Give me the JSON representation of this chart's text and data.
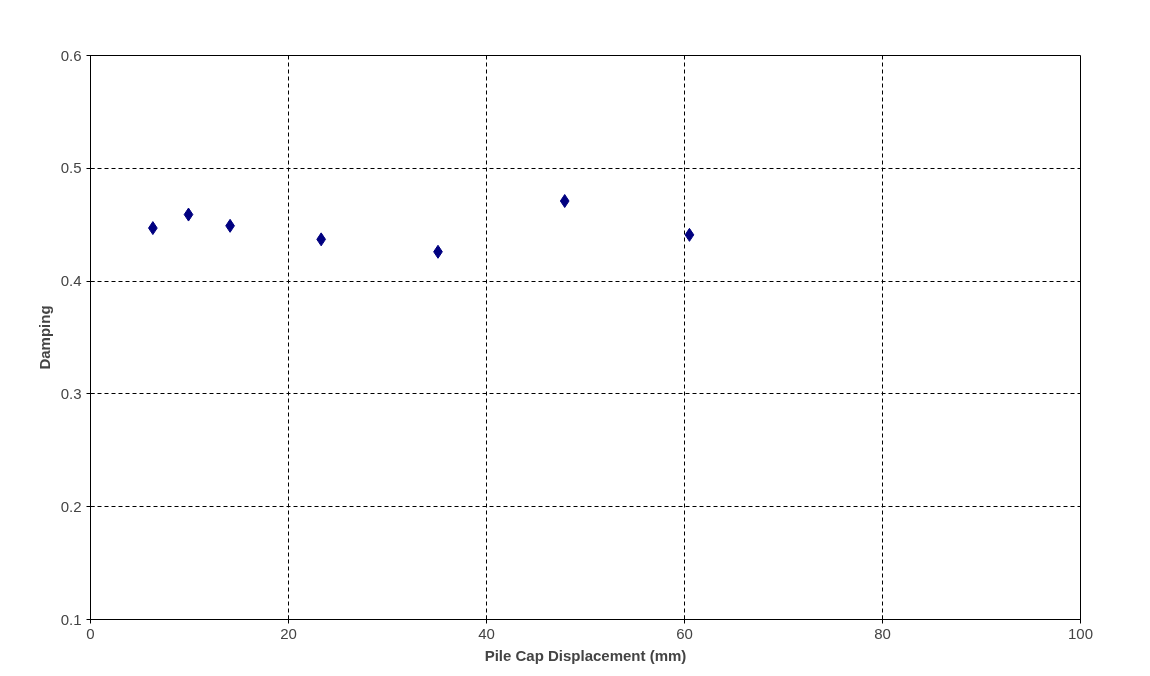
{
  "chart_data": {
    "type": "scatter",
    "xlabel": "Pile Cap Displacement (mm)",
    "ylabel": "Damping",
    "x": [
      6.3,
      9.9,
      14.1,
      23.3,
      35.1,
      47.9,
      60.5
    ],
    "series": [
      {
        "color": "#000080",
        "values": [
          0.447,
          0.459,
          0.449,
          0.437,
          0.426,
          0.471,
          0.441
        ]
      }
    ],
    "xlim": [
      0,
      100
    ],
    "xticks": [
      0,
      20,
      40,
      60,
      80,
      100
    ],
    "ylim": [
      0.1,
      0.6
    ],
    "yticks": [
      0.1,
      0.2,
      0.3,
      0.4,
      0.5,
      0.6
    ],
    "grid": true,
    "marker": "diamond"
  }
}
